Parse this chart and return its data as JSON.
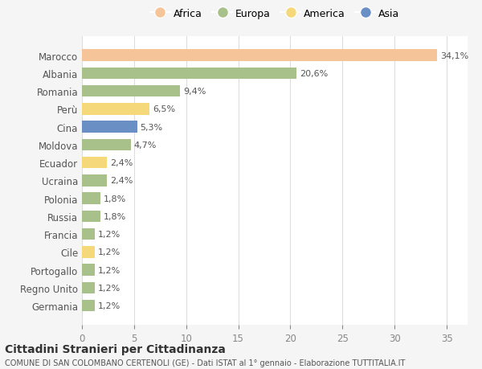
{
  "countries": [
    "Marocco",
    "Albania",
    "Romania",
    "Perù",
    "Cina",
    "Moldova",
    "Ecuador",
    "Ucraina",
    "Polonia",
    "Russia",
    "Francia",
    "Cile",
    "Portogallo",
    "Regno Unito",
    "Germania"
  ],
  "values": [
    34.1,
    20.6,
    9.4,
    6.5,
    5.3,
    4.7,
    2.4,
    2.4,
    1.8,
    1.8,
    1.2,
    1.2,
    1.2,
    1.2,
    1.2
  ],
  "labels": [
    "34,1%",
    "20,6%",
    "9,4%",
    "6,5%",
    "5,3%",
    "4,7%",
    "2,4%",
    "2,4%",
    "1,8%",
    "1,8%",
    "1,2%",
    "1,2%",
    "1,2%",
    "1,2%",
    "1,2%"
  ],
  "colors": [
    "#F5C499",
    "#A8C18A",
    "#A8C18A",
    "#F5D87A",
    "#6A8FC4",
    "#A8C18A",
    "#F5D87A",
    "#A8C18A",
    "#A8C18A",
    "#A8C18A",
    "#A8C18A",
    "#F5D87A",
    "#A8C18A",
    "#A8C18A",
    "#A8C18A"
  ],
  "legend_labels": [
    "Africa",
    "Europa",
    "America",
    "Asia"
  ],
  "legend_colors": [
    "#F5C499",
    "#A8C18A",
    "#F5D87A",
    "#6A8FC4"
  ],
  "title": "Cittadini Stranieri per Cittadinanza",
  "subtitle": "COMUNE DI SAN COLOMBANO CERTENOLI (GE) - Dati ISTAT al 1° gennaio - Elaborazione TUTTITALIA.IT",
  "xlim": [
    0,
    37
  ],
  "xticks": [
    0,
    5,
    10,
    15,
    20,
    25,
    30,
    35
  ],
  "background_color": "#f5f5f5",
  "bar_background": "#ffffff"
}
